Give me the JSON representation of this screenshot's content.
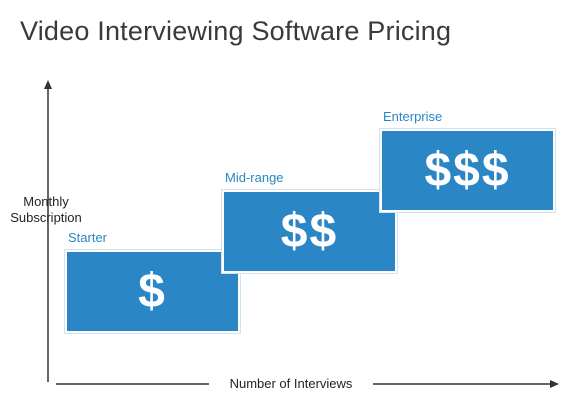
{
  "title": "Video Interviewing Software Pricing",
  "axes": {
    "y_label_line1": "Monthly",
    "y_label_line2": "Subscription",
    "x_label": "Number of Interviews"
  },
  "tiers": [
    {
      "label": "Starter",
      "symbol": "$"
    },
    {
      "label": "Mid-range",
      "symbol": "$$"
    },
    {
      "label": "Enterprise",
      "symbol": "$$$"
    }
  ],
  "colors": {
    "tier_fill": "#2a86c5",
    "tier_label": "#2a86c5",
    "axis": "#333333",
    "title": "#3a3a3a"
  }
}
